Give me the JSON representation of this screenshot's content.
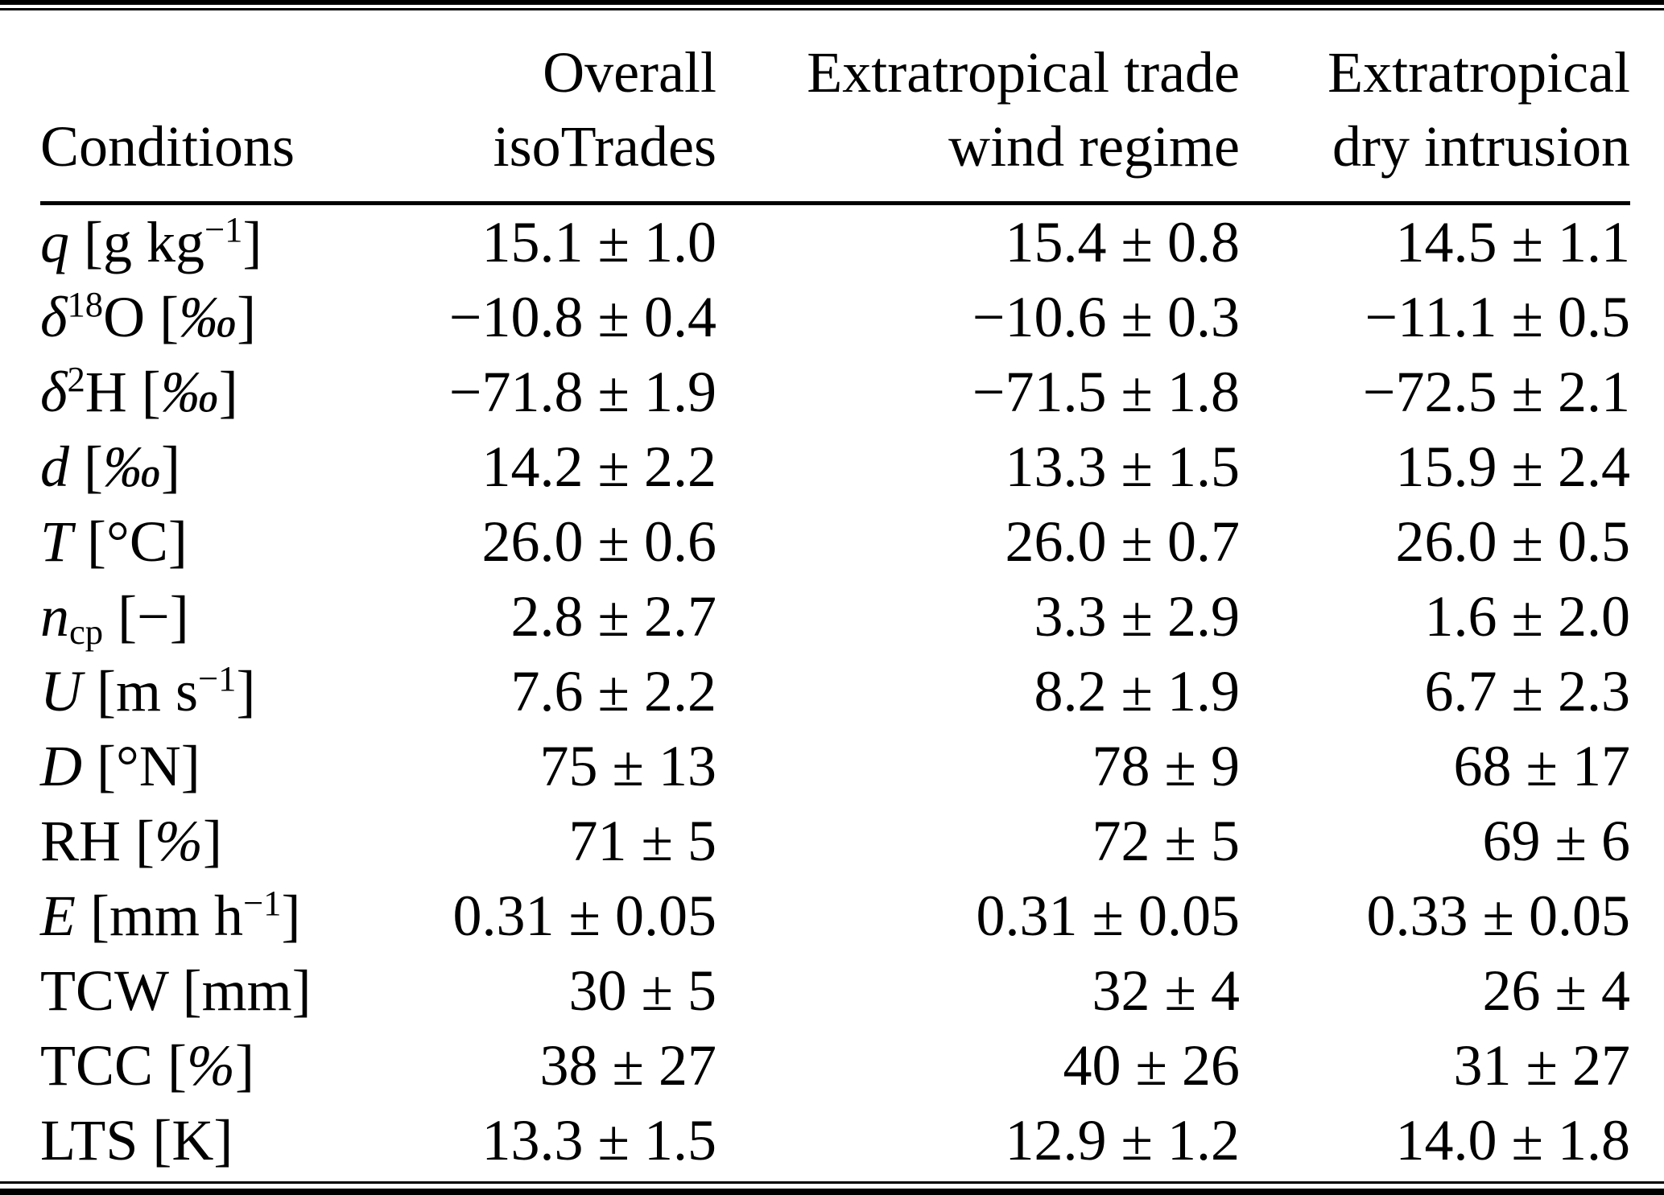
{
  "colors": {
    "text": "#000000",
    "background": "#ffffff"
  },
  "table": {
    "title_row": {
      "conditions": "Conditions",
      "overall": [
        "Overall",
        "isoTrades"
      ],
      "trade": [
        "Extratropical trade",
        "wind regime"
      ],
      "dry": [
        "Extratropical",
        "dry intrusion"
      ]
    },
    "rows": [
      {
        "label": {
          "lead": "q",
          "lead_sup": "",
          "lead_sub": "",
          "mid": " [g kg",
          "mid_sup": "−1",
          "it": "",
          "tail": "]"
        },
        "values": [
          "15.1 ± 1.0",
          "15.4 ± 0.8",
          "14.5 ± 1.1"
        ]
      },
      {
        "label": {
          "lead": "δ",
          "lead_sup": "18",
          "lead_sub": "",
          "mid": "O [",
          "mid_sup": "",
          "it": "‰",
          "tail": "]"
        },
        "values": [
          "−10.8 ± 0.4",
          "−10.6 ± 0.3",
          "−11.1 ± 0.5"
        ]
      },
      {
        "label": {
          "lead": "δ",
          "lead_sup": "2",
          "lead_sub": "",
          "mid": "H [",
          "mid_sup": "",
          "it": "‰",
          "tail": "]"
        },
        "values": [
          "−71.8 ± 1.9",
          "−71.5 ± 1.8",
          "−72.5 ± 2.1"
        ]
      },
      {
        "label": {
          "lead": "d",
          "lead_sup": "",
          "lead_sub": "",
          "mid": " [",
          "mid_sup": "",
          "it": "‰",
          "tail": "]"
        },
        "values": [
          "14.2 ± 2.2",
          "13.3 ± 1.5",
          "15.9 ± 2.4"
        ]
      },
      {
        "label": {
          "lead": "T",
          "lead_sup": "",
          "lead_sub": "",
          "mid": " [°C]",
          "mid_sup": "",
          "it": "",
          "tail": ""
        },
        "values": [
          "26.0 ± 0.6",
          "26.0 ± 0.7",
          "26.0 ± 0.5"
        ]
      },
      {
        "label": {
          "lead": "n",
          "lead_sup": "",
          "lead_sub": "cp",
          "mid": " [−]",
          "mid_sup": "",
          "it": "",
          "tail": ""
        },
        "values": [
          "2.8 ± 2.7",
          "3.3 ± 2.9",
          "1.6 ± 2.0"
        ]
      },
      {
        "label": {
          "lead": "U",
          "lead_sup": "",
          "lead_sub": "",
          "mid": " [m s",
          "mid_sup": "−1",
          "it": "",
          "tail": "]"
        },
        "values": [
          "7.6 ± 2.2",
          "8.2 ± 1.9",
          "6.7 ± 2.3"
        ]
      },
      {
        "label": {
          "lead": "D",
          "lead_sup": "",
          "lead_sub": "",
          "mid": " [°N]",
          "mid_sup": "",
          "it": "",
          "tail": ""
        },
        "values": [
          "75 ± 13",
          "78 ± 9",
          "68 ± 17"
        ]
      },
      {
        "label": {
          "lead": "RH",
          "lead_sup": "",
          "lead_sub": "",
          "mid": " [",
          "mid_sup": "",
          "it": "%",
          "tail": "]"
        },
        "values": [
          "71 ± 5",
          "72 ± 5",
          "69 ± 6"
        ]
      },
      {
        "label": {
          "lead": "E",
          "lead_sup": "",
          "lead_sub": "",
          "mid": " [mm h",
          "mid_sup": "−1",
          "it": "",
          "tail": "]"
        },
        "values": [
          "0.31 ± 0.05",
          "0.31 ± 0.05",
          "0.33 ± 0.05"
        ]
      },
      {
        "label": {
          "lead": "TCW",
          "lead_sup": "",
          "lead_sub": "",
          "mid": " [mm]",
          "mid_sup": "",
          "it": "",
          "tail": ""
        },
        "values": [
          "30 ± 5",
          "32 ± 4",
          "26 ± 4"
        ]
      },
      {
        "label": {
          "lead": "TCC",
          "lead_sup": "",
          "lead_sub": "",
          "mid": " [",
          "mid_sup": "",
          "it": "%",
          "tail": "]"
        },
        "values": [
          "38 ± 27",
          "40 ± 26",
          "31 ± 27"
        ]
      },
      {
        "label": {
          "lead": "LTS",
          "lead_sup": "",
          "lead_sub": "",
          "mid": " [K]",
          "mid_sup": "",
          "it": "",
          "tail": ""
        },
        "values": [
          "13.3 ± 1.5",
          "12.9 ± 1.2",
          "14.0 ± 1.8"
        ]
      }
    ]
  }
}
